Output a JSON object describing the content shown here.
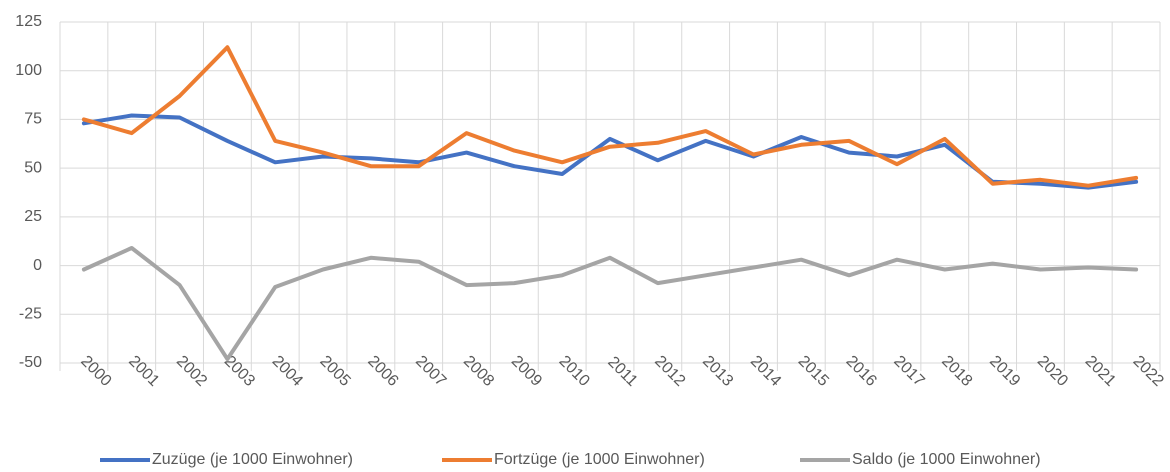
{
  "chart_data": {
    "type": "line",
    "categories": [
      "2000",
      "2001",
      "2002",
      "2003",
      "2004",
      "2005",
      "2006",
      "2007",
      "2008",
      "2009",
      "2010",
      "2011",
      "2012",
      "2013",
      "2014",
      "2015",
      "2016",
      "2017",
      "2018",
      "2019",
      "2020",
      "2021",
      "2022"
    ],
    "series": [
      {
        "name": "Zuzüge (je 1000 Einwohner)",
        "color": "#4472c4",
        "values": [
          73,
          77,
          76,
          64,
          53,
          56,
          55,
          53,
          58,
          51,
          47,
          65,
          54,
          64,
          56,
          66,
          58,
          56,
          62,
          43,
          42,
          40,
          43
        ]
      },
      {
        "name": "Fortzüge (je 1000 Einwohner)",
        "color": "#ed7d31",
        "values": [
          75,
          68,
          87,
          112,
          64,
          58,
          51,
          51,
          68,
          59,
          53,
          61,
          63,
          69,
          57,
          62,
          64,
          52,
          65,
          42,
          44,
          41,
          45
        ]
      },
      {
        "name": "Saldo (je 1000 Einwohner)",
        "color": "#a5a5a5",
        "values": [
          -2,
          9,
          -10,
          -48,
          -11,
          -2,
          4,
          2,
          -10,
          -9,
          -5,
          4,
          -9,
          -5,
          -1,
          3,
          -5,
          3,
          -2,
          1,
          -2,
          -1,
          -2
        ]
      }
    ],
    "ylim": [
      -50,
      125
    ],
    "yticks": [
      -50,
      -25,
      0,
      25,
      50,
      75,
      100,
      125
    ],
    "grid": true,
    "legend": "bottom"
  }
}
